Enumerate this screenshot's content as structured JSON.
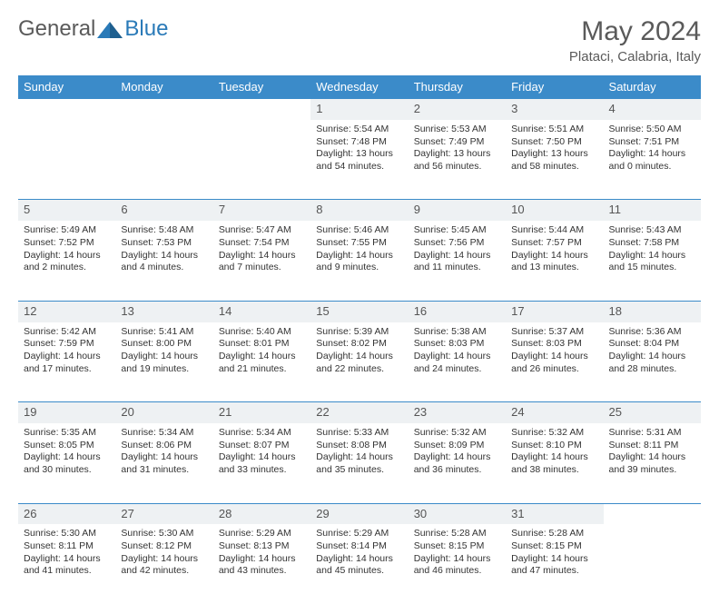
{
  "logo": {
    "text1": "General",
    "text2": "Blue"
  },
  "title": "May 2024",
  "subtitle": "Plataci, Calabria, Italy",
  "headers": [
    "Sunday",
    "Monday",
    "Tuesday",
    "Wednesday",
    "Thursday",
    "Friday",
    "Saturday"
  ],
  "colors": {
    "header_bg": "#3b8bc9",
    "header_text": "#ffffff",
    "daynum_bg": "#eef1f3",
    "border": "#3b8bc9",
    "text": "#333333",
    "title": "#5a5a5a"
  },
  "weeks": [
    {
      "nums": [
        "",
        "",
        "",
        "1",
        "2",
        "3",
        "4"
      ],
      "cells": [
        {
          "empty": true
        },
        {
          "empty": true
        },
        {
          "empty": true
        },
        {
          "sunrise": "Sunrise: 5:54 AM",
          "sunset": "Sunset: 7:48 PM",
          "day1": "Daylight: 13 hours",
          "day2": "and 54 minutes."
        },
        {
          "sunrise": "Sunrise: 5:53 AM",
          "sunset": "Sunset: 7:49 PM",
          "day1": "Daylight: 13 hours",
          "day2": "and 56 minutes."
        },
        {
          "sunrise": "Sunrise: 5:51 AM",
          "sunset": "Sunset: 7:50 PM",
          "day1": "Daylight: 13 hours",
          "day2": "and 58 minutes."
        },
        {
          "sunrise": "Sunrise: 5:50 AM",
          "sunset": "Sunset: 7:51 PM",
          "day1": "Daylight: 14 hours",
          "day2": "and 0 minutes."
        }
      ]
    },
    {
      "nums": [
        "5",
        "6",
        "7",
        "8",
        "9",
        "10",
        "11"
      ],
      "cells": [
        {
          "sunrise": "Sunrise: 5:49 AM",
          "sunset": "Sunset: 7:52 PM",
          "day1": "Daylight: 14 hours",
          "day2": "and 2 minutes."
        },
        {
          "sunrise": "Sunrise: 5:48 AM",
          "sunset": "Sunset: 7:53 PM",
          "day1": "Daylight: 14 hours",
          "day2": "and 4 minutes."
        },
        {
          "sunrise": "Sunrise: 5:47 AM",
          "sunset": "Sunset: 7:54 PM",
          "day1": "Daylight: 14 hours",
          "day2": "and 7 minutes."
        },
        {
          "sunrise": "Sunrise: 5:46 AM",
          "sunset": "Sunset: 7:55 PM",
          "day1": "Daylight: 14 hours",
          "day2": "and 9 minutes."
        },
        {
          "sunrise": "Sunrise: 5:45 AM",
          "sunset": "Sunset: 7:56 PM",
          "day1": "Daylight: 14 hours",
          "day2": "and 11 minutes."
        },
        {
          "sunrise": "Sunrise: 5:44 AM",
          "sunset": "Sunset: 7:57 PM",
          "day1": "Daylight: 14 hours",
          "day2": "and 13 minutes."
        },
        {
          "sunrise": "Sunrise: 5:43 AM",
          "sunset": "Sunset: 7:58 PM",
          "day1": "Daylight: 14 hours",
          "day2": "and 15 minutes."
        }
      ]
    },
    {
      "nums": [
        "12",
        "13",
        "14",
        "15",
        "16",
        "17",
        "18"
      ],
      "cells": [
        {
          "sunrise": "Sunrise: 5:42 AM",
          "sunset": "Sunset: 7:59 PM",
          "day1": "Daylight: 14 hours",
          "day2": "and 17 minutes."
        },
        {
          "sunrise": "Sunrise: 5:41 AM",
          "sunset": "Sunset: 8:00 PM",
          "day1": "Daylight: 14 hours",
          "day2": "and 19 minutes."
        },
        {
          "sunrise": "Sunrise: 5:40 AM",
          "sunset": "Sunset: 8:01 PM",
          "day1": "Daylight: 14 hours",
          "day2": "and 21 minutes."
        },
        {
          "sunrise": "Sunrise: 5:39 AM",
          "sunset": "Sunset: 8:02 PM",
          "day1": "Daylight: 14 hours",
          "day2": "and 22 minutes."
        },
        {
          "sunrise": "Sunrise: 5:38 AM",
          "sunset": "Sunset: 8:03 PM",
          "day1": "Daylight: 14 hours",
          "day2": "and 24 minutes."
        },
        {
          "sunrise": "Sunrise: 5:37 AM",
          "sunset": "Sunset: 8:03 PM",
          "day1": "Daylight: 14 hours",
          "day2": "and 26 minutes."
        },
        {
          "sunrise": "Sunrise: 5:36 AM",
          "sunset": "Sunset: 8:04 PM",
          "day1": "Daylight: 14 hours",
          "day2": "and 28 minutes."
        }
      ]
    },
    {
      "nums": [
        "19",
        "20",
        "21",
        "22",
        "23",
        "24",
        "25"
      ],
      "cells": [
        {
          "sunrise": "Sunrise: 5:35 AM",
          "sunset": "Sunset: 8:05 PM",
          "day1": "Daylight: 14 hours",
          "day2": "and 30 minutes."
        },
        {
          "sunrise": "Sunrise: 5:34 AM",
          "sunset": "Sunset: 8:06 PM",
          "day1": "Daylight: 14 hours",
          "day2": "and 31 minutes."
        },
        {
          "sunrise": "Sunrise: 5:34 AM",
          "sunset": "Sunset: 8:07 PM",
          "day1": "Daylight: 14 hours",
          "day2": "and 33 minutes."
        },
        {
          "sunrise": "Sunrise: 5:33 AM",
          "sunset": "Sunset: 8:08 PM",
          "day1": "Daylight: 14 hours",
          "day2": "and 35 minutes."
        },
        {
          "sunrise": "Sunrise: 5:32 AM",
          "sunset": "Sunset: 8:09 PM",
          "day1": "Daylight: 14 hours",
          "day2": "and 36 minutes."
        },
        {
          "sunrise": "Sunrise: 5:32 AM",
          "sunset": "Sunset: 8:10 PM",
          "day1": "Daylight: 14 hours",
          "day2": "and 38 minutes."
        },
        {
          "sunrise": "Sunrise: 5:31 AM",
          "sunset": "Sunset: 8:11 PM",
          "day1": "Daylight: 14 hours",
          "day2": "and 39 minutes."
        }
      ]
    },
    {
      "nums": [
        "26",
        "27",
        "28",
        "29",
        "30",
        "31",
        ""
      ],
      "cells": [
        {
          "sunrise": "Sunrise: 5:30 AM",
          "sunset": "Sunset: 8:11 PM",
          "day1": "Daylight: 14 hours",
          "day2": "and 41 minutes."
        },
        {
          "sunrise": "Sunrise: 5:30 AM",
          "sunset": "Sunset: 8:12 PM",
          "day1": "Daylight: 14 hours",
          "day2": "and 42 minutes."
        },
        {
          "sunrise": "Sunrise: 5:29 AM",
          "sunset": "Sunset: 8:13 PM",
          "day1": "Daylight: 14 hours",
          "day2": "and 43 minutes."
        },
        {
          "sunrise": "Sunrise: 5:29 AM",
          "sunset": "Sunset: 8:14 PM",
          "day1": "Daylight: 14 hours",
          "day2": "and 45 minutes."
        },
        {
          "sunrise": "Sunrise: 5:28 AM",
          "sunset": "Sunset: 8:15 PM",
          "day1": "Daylight: 14 hours",
          "day2": "and 46 minutes."
        },
        {
          "sunrise": "Sunrise: 5:28 AM",
          "sunset": "Sunset: 8:15 PM",
          "day1": "Daylight: 14 hours",
          "day2": "and 47 minutes."
        },
        {
          "empty": true
        }
      ]
    }
  ]
}
